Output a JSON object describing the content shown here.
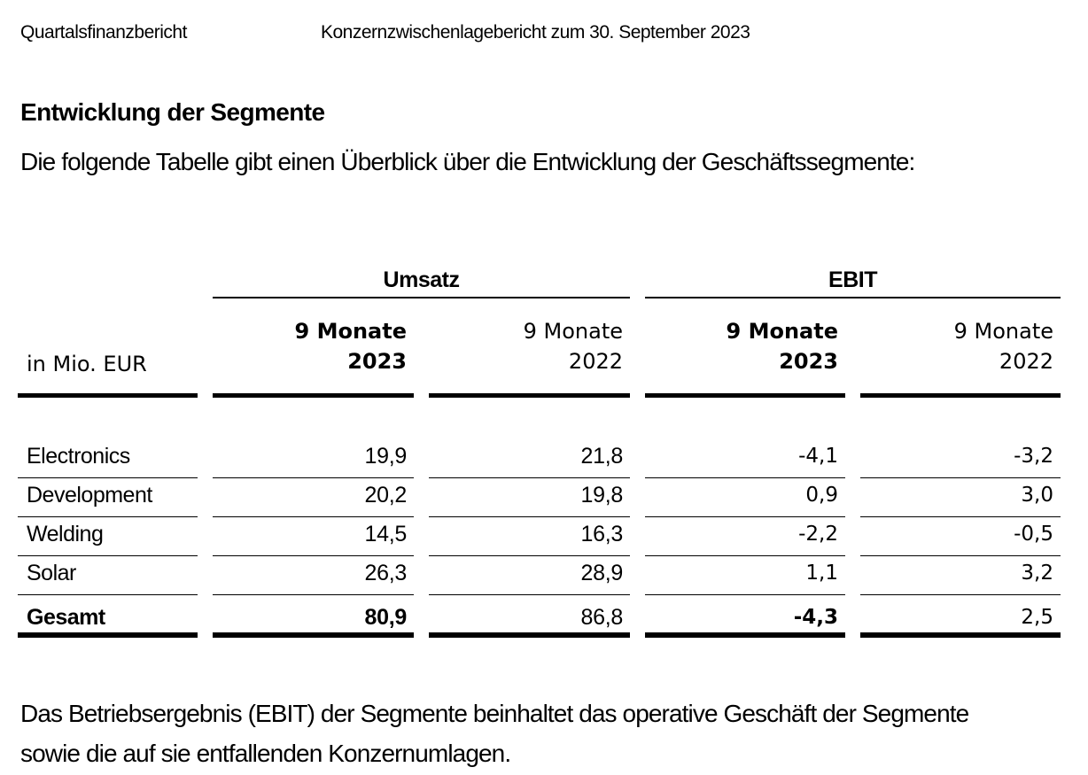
{
  "page": {
    "header_left": "Quartalsfinanzbericht",
    "header_center": "Konzernzwischenlagebericht zum 30. September 2023",
    "colors": {
      "text": "#000000",
      "background": "#ffffff"
    }
  },
  "section": {
    "title": "Entwicklung der Segmente",
    "intro": "Die folgende Tabelle gibt einen Überblick über die Entwicklung der Geschäftssegmente:"
  },
  "table": {
    "unit_label": "in Mio. EUR",
    "groups": [
      {
        "label": "Umsatz"
      },
      {
        "label": "EBIT"
      }
    ],
    "columns": [
      {
        "group": "Umsatz",
        "period": "9 Monate",
        "year": "2023",
        "bold": true
      },
      {
        "group": "Umsatz",
        "period": "9 Monate",
        "year": "2022",
        "bold": false
      },
      {
        "group": "EBIT",
        "period": "9 Monate",
        "year": "2023",
        "bold": true
      },
      {
        "group": "EBIT",
        "period": "9 Monate",
        "year": "2022",
        "bold": false
      }
    ],
    "rows": [
      {
        "label": "Electronics",
        "values": [
          "19,9",
          "21,8",
          "-4,1",
          "-3,2"
        ],
        "is_total": false
      },
      {
        "label": "Development",
        "values": [
          "20,2",
          "19,8",
          "0,9",
          "3,0"
        ],
        "is_total": false
      },
      {
        "label": "Welding",
        "values": [
          "14,5",
          "16,3",
          "-2,2",
          "-0,5"
        ],
        "is_total": false
      },
      {
        "label": "Solar",
        "values": [
          "26,3",
          "28,9",
          "1,1",
          "3,2"
        ],
        "is_total": false
      },
      {
        "label": "Gesamt",
        "values": [
          "80,9",
          "86,8",
          "-4,3",
          "2,5"
        ],
        "is_total": true
      }
    ]
  },
  "footer": {
    "lines": [
      "Das Betriebsergebnis (EBIT) der Segmente beinhaltet das operative Geschäft der Segmente",
      "sowie die auf sie entfallenden Konzernumlagen."
    ]
  }
}
